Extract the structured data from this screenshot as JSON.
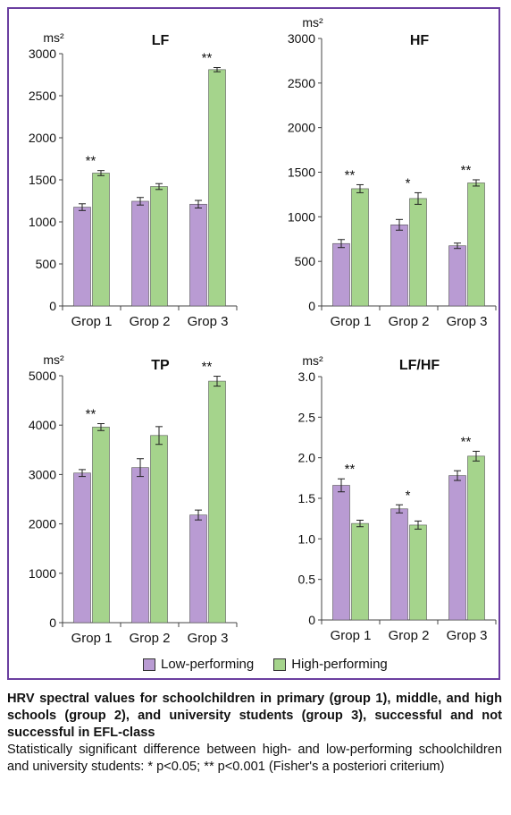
{
  "units": "ms²",
  "categories": [
    "Grop 1",
    "Grop 2",
    "Grop 3"
  ],
  "colors": {
    "low": "#b99bd3",
    "high": "#a5d48c",
    "frame": "#6b3fa0"
  },
  "legend": {
    "low_label": "Low-performing",
    "high_label": "High-performing"
  },
  "caption": {
    "title": "HRV spectral values for schoolchildren in primary (group 1), middle, and high schools (group 2), and university students (group 3), successful and not successful in EFL-class",
    "note": "Statistically significant difference between high- and low-performing schoolchildren and university students: * p<0.05; ** p<0.001 (Fisher's a posteriori criterium)"
  },
  "chart_data": [
    {
      "type": "bar",
      "title": "LF",
      "ylabel": "ms²",
      "categories": [
        "Grop 1",
        "Grop 2",
        "Grop 3"
      ],
      "ylim": [
        0,
        3000
      ],
      "yticks": [
        0,
        500,
        1000,
        1500,
        2000,
        2500,
        3000
      ],
      "tick_labels": [
        "0",
        "500",
        "1000",
        "1500",
        "2000",
        "2500",
        "3000"
      ],
      "series": [
        {
          "name": "Low-performing",
          "values": [
            1175,
            1245,
            1210
          ],
          "errors": [
            40,
            45,
            45
          ]
        },
        {
          "name": "High-performing",
          "values": [
            1580,
            1420,
            2810
          ],
          "errors": [
            30,
            35,
            25
          ]
        }
      ],
      "significance": [
        "**",
        "",
        "**"
      ]
    },
    {
      "type": "bar",
      "title": "HF",
      "ylabel": "ms²",
      "categories": [
        "Grop 1",
        "Grop 2",
        "Grop 3"
      ],
      "ylim": [
        0,
        3000
      ],
      "yticks": [
        0,
        500,
        1000,
        1500,
        2000,
        2500,
        3000
      ],
      "tick_labels": [
        "0",
        "500",
        "1000",
        "1500",
        "2000",
        "2500",
        "3000"
      ],
      "series": [
        {
          "name": "Low-performing",
          "values": [
            700,
            910,
            675
          ],
          "errors": [
            45,
            60,
            30
          ]
        },
        {
          "name": "High-performing",
          "values": [
            1315,
            1205,
            1380
          ],
          "errors": [
            45,
            65,
            35
          ]
        }
      ],
      "significance": [
        "**",
        "*",
        "**"
      ]
    },
    {
      "type": "bar",
      "title": "TP",
      "ylabel": "ms²",
      "categories": [
        "Grop 1",
        "Grop 2",
        "Grop 3"
      ],
      "ylim": [
        0,
        5000
      ],
      "yticks": [
        0,
        1000,
        2000,
        3000,
        4000,
        5000
      ],
      "tick_labels": [
        "0",
        "1000",
        "2000",
        "3000",
        "4000",
        "5000"
      ],
      "series": [
        {
          "name": "Low-performing",
          "values": [
            3030,
            3140,
            2180
          ],
          "errors": [
            70,
            180,
            100
          ]
        },
        {
          "name": "High-performing",
          "values": [
            3960,
            3790,
            4890
          ],
          "errors": [
            70,
            180,
            100
          ]
        }
      ],
      "significance": [
        "**",
        "",
        "**"
      ]
    },
    {
      "type": "bar",
      "title": "LF/HF",
      "ylabel": "ms²",
      "categories": [
        "Grop 1",
        "Grop 2",
        "Grop 3"
      ],
      "ylim": [
        0,
        3.0
      ],
      "yticks": [
        0,
        0.5,
        1.0,
        1.5,
        2.0,
        2.5,
        3.0
      ],
      "tick_labels": [
        "0",
        "0.5",
        "1.0",
        "1.5",
        "2.0",
        "2.5",
        "3.0"
      ],
      "series": [
        {
          "name": "Low-performing",
          "values": [
            1.66,
            1.37,
            1.78
          ],
          "errors": [
            0.08,
            0.05,
            0.06
          ]
        },
        {
          "name": "High-performing",
          "values": [
            1.19,
            1.17,
            2.02
          ],
          "errors": [
            0.04,
            0.05,
            0.06
          ]
        }
      ],
      "significance": [
        "**",
        "*",
        "**"
      ]
    }
  ]
}
